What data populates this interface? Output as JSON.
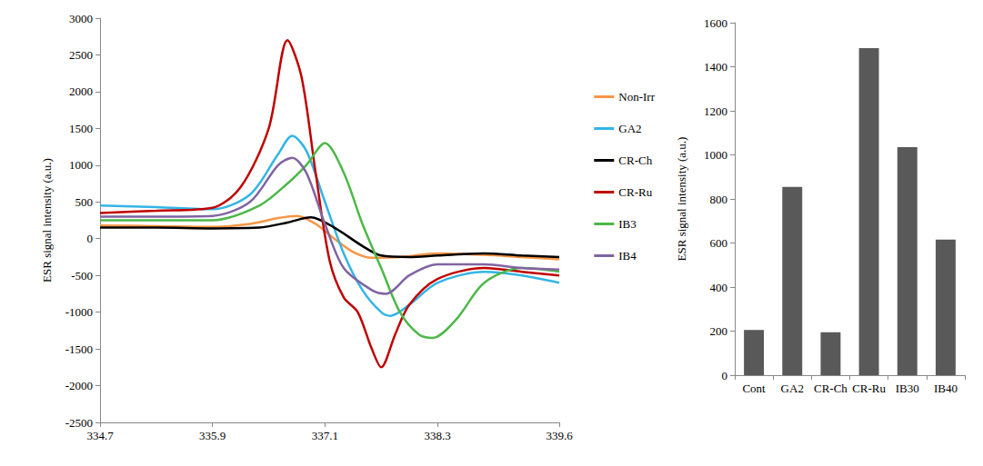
{
  "chart_data": [
    {
      "type": "line",
      "y_label": "ESR signal intensity (a.u.)",
      "xlim": [
        334.7,
        339.6
      ],
      "xticks": [
        334.7,
        335.9,
        337.1,
        338.3,
        339.6
      ],
      "ylim": [
        -2500,
        3000
      ],
      "yticks": [
        -2500,
        -2000,
        -1500,
        -1000,
        -500,
        0,
        500,
        1000,
        1500,
        2000,
        2500,
        3000
      ],
      "grid": false,
      "legend": "right",
      "series": [
        {
          "name": "Non-Irr",
          "color": "#f79646",
          "x": [
            334.7,
            335.3,
            335.9,
            336.3,
            336.6,
            336.8,
            337.0,
            337.2,
            337.4,
            337.6,
            337.9,
            338.3,
            338.8,
            339.2,
            339.6
          ],
          "values": [
            180,
            170,
            160,
            200,
            280,
            310,
            200,
            0,
            -180,
            -260,
            -250,
            -200,
            -220,
            -250,
            -280
          ]
        },
        {
          "name": "GA2",
          "color": "#33b5e5",
          "x": [
            334.7,
            335.3,
            335.9,
            336.3,
            336.6,
            336.75,
            336.9,
            337.1,
            337.3,
            337.5,
            337.7,
            337.8,
            338.0,
            338.3,
            338.8,
            339.2,
            339.6
          ],
          "values": [
            450,
            430,
            400,
            600,
            1150,
            1400,
            1200,
            500,
            -200,
            -700,
            -1000,
            -1050,
            -900,
            -600,
            -450,
            -500,
            -600
          ]
        },
        {
          "name": "CR-Ch",
          "color": "#000000",
          "x": [
            334.7,
            335.3,
            335.9,
            336.4,
            336.7,
            336.95,
            337.2,
            337.5,
            337.7,
            338.0,
            338.3,
            338.8,
            339.2,
            339.6
          ],
          "values": [
            150,
            150,
            140,
            150,
            220,
            290,
            150,
            -100,
            -230,
            -250,
            -230,
            -200,
            -230,
            -250
          ]
        },
        {
          "name": "CR-Ru",
          "color": "#c00000",
          "x": [
            334.7,
            335.3,
            335.9,
            336.2,
            336.5,
            336.7,
            336.85,
            337.0,
            337.15,
            337.3,
            337.45,
            337.6,
            337.7,
            337.85,
            338.0,
            338.3,
            338.8,
            339.2,
            339.6
          ],
          "values": [
            350,
            380,
            420,
            700,
            1500,
            2700,
            2200,
            900,
            -300,
            -800,
            -1000,
            -1500,
            -1750,
            -1300,
            -900,
            -550,
            -400,
            -450,
            -500
          ]
        },
        {
          "name": "IB3",
          "color": "#4db848",
          "x": [
            334.7,
            335.3,
            335.9,
            336.4,
            336.7,
            336.9,
            337.1,
            337.3,
            337.5,
            337.7,
            337.9,
            338.1,
            338.25,
            338.5,
            338.8,
            339.2,
            339.6
          ],
          "values": [
            250,
            250,
            250,
            450,
            750,
            1000,
            1300,
            900,
            200,
            -400,
            -1000,
            -1300,
            -1350,
            -1100,
            -600,
            -400,
            -450
          ]
        },
        {
          "name": "IB4",
          "color": "#8064a2",
          "x": [
            334.7,
            335.3,
            335.9,
            336.3,
            336.6,
            336.75,
            336.9,
            337.1,
            337.3,
            337.6,
            337.75,
            338.0,
            338.3,
            338.8,
            339.2,
            339.6
          ],
          "values": [
            300,
            300,
            310,
            500,
            1000,
            1100,
            900,
            200,
            -400,
            -700,
            -750,
            -500,
            -350,
            -350,
            -400,
            -420
          ]
        }
      ]
    },
    {
      "type": "bar",
      "y_label": "ESR signal intensity (a.u.)",
      "categories": [
        "Cont",
        "GA2",
        "CR-Ch",
        "CR-Ru",
        "IB30",
        "IB40"
      ],
      "values": [
        205,
        855,
        195,
        1485,
        1035,
        615
      ],
      "color": "#595959",
      "ylim": [
        0,
        1600
      ],
      "yticks": [
        0,
        200,
        400,
        600,
        800,
        1000,
        1200,
        1400,
        1600
      ],
      "grid": false
    }
  ]
}
